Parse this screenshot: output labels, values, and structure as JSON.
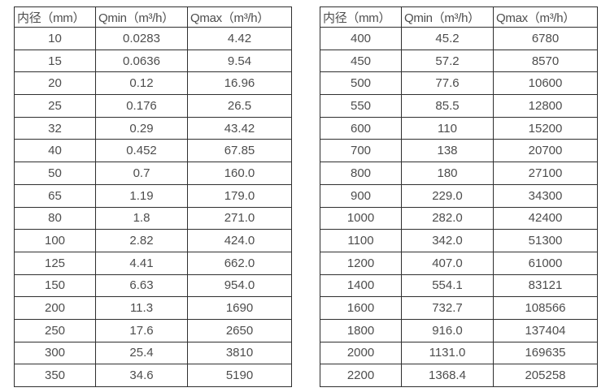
{
  "colors": {
    "background": "#ffffff",
    "border": "#2f2f2f",
    "text": "#4d4d4d"
  },
  "table_left": {
    "name": "small-diameter-flow-table",
    "headers": [
      "内径（mm）",
      "Qmin（m³/h）",
      "Qmax（m³/h）"
    ],
    "rows": [
      [
        "10",
        "0.0283",
        "4.42"
      ],
      [
        "15",
        "0.0636",
        "9.54"
      ],
      [
        "20",
        "0.12",
        "16.96"
      ],
      [
        "25",
        "0.176",
        "26.5"
      ],
      [
        "32",
        "0.29",
        "43.42"
      ],
      [
        "40",
        "0.452",
        "67.85"
      ],
      [
        "50",
        "0.7",
        "160.0"
      ],
      [
        "65",
        "1.19",
        "179.0"
      ],
      [
        "80",
        "1.8",
        "271.0"
      ],
      [
        "100",
        "2.82",
        "424.0"
      ],
      [
        "125",
        "4.41",
        "662.0"
      ],
      [
        "150",
        "6.63",
        "954.0"
      ],
      [
        "200",
        "11.3",
        "1690"
      ],
      [
        "250",
        "17.6",
        "2650"
      ],
      [
        "300",
        "25.4",
        "3810"
      ],
      [
        "350",
        "34.6",
        "5190"
      ]
    ]
  },
  "table_right": {
    "name": "large-diameter-flow-table",
    "headers": [
      "内径（mm）",
      "Qmin（m³/h）",
      "Qmax（m³/h）"
    ],
    "rows": [
      [
        "400",
        "45.2",
        "6780"
      ],
      [
        "450",
        "57.2",
        "8570"
      ],
      [
        "500",
        "77.6",
        "10600"
      ],
      [
        "550",
        "85.5",
        "12800"
      ],
      [
        "600",
        "110",
        "15200"
      ],
      [
        "700",
        "138",
        "20700"
      ],
      [
        "800",
        "180",
        "27100"
      ],
      [
        "900",
        "229.0",
        "34300"
      ],
      [
        "1000",
        "282.0",
        "42400"
      ],
      [
        "1100",
        "342.0",
        "51300"
      ],
      [
        "1200",
        "407.0",
        "61000"
      ],
      [
        "1400",
        "554.1",
        "83121"
      ],
      [
        "1600",
        "732.7",
        "108566"
      ],
      [
        "1800",
        "916.0",
        "137404"
      ],
      [
        "2000",
        "1131.0",
        "169635"
      ],
      [
        "2200",
        "1368.4",
        "205258"
      ]
    ]
  }
}
